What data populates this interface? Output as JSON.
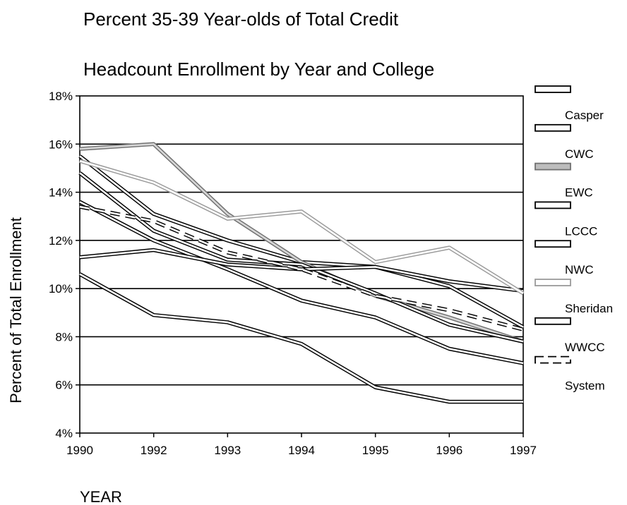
{
  "chart_data": {
    "type": "line",
    "title": [
      "Percent 35-39 Year-olds of Total Credit",
      "Headcount Enrollment by Year and College"
    ],
    "xlabel": "YEAR",
    "ylabel": "Percent of Total Enrollment",
    "categories": [
      "1990",
      "1992",
      "1993",
      "1994",
      "1995",
      "1996",
      "1997"
    ],
    "ylim": [
      4,
      18
    ],
    "yticks": [
      "4%",
      "6%",
      "8%",
      "10%",
      "12%",
      "14%",
      "16%",
      "18%"
    ],
    "grid": true,
    "legend_position": "right",
    "series": [
      {
        "name": "Casper",
        "values": [
          15.5,
          13.1,
          12.0,
          11.1,
          10.9,
          10.1,
          8.4
        ],
        "color": "#000000"
      },
      {
        "name": "CWC",
        "values": [
          13.6,
          12.0,
          10.8,
          9.5,
          8.8,
          7.5,
          6.9
        ],
        "color": "#000000"
      },
      {
        "name": "EWC",
        "values": [
          15.8,
          16.0,
          13.1,
          11.1,
          9.7,
          8.8,
          7.8
        ],
        "color": "#707070"
      },
      {
        "name": "LCCC",
        "values": [
          14.8,
          12.4,
          11.2,
          11.0,
          9.8,
          8.5,
          7.8
        ],
        "color": "#000000"
      },
      {
        "name": "NWC",
        "values": [
          11.3,
          11.6,
          11.0,
          10.8,
          10.9,
          10.3,
          9.9
        ],
        "color": "#000000"
      },
      {
        "name": "Sheridan",
        "values": [
          15.3,
          14.4,
          12.9,
          13.2,
          11.1,
          11.7,
          9.8
        ],
        "color": "#9a9a9a"
      },
      {
        "name": "WWCC",
        "values": [
          10.6,
          8.9,
          8.6,
          7.7,
          5.9,
          5.3,
          5.3
        ],
        "color": "#000000"
      },
      {
        "name": "System",
        "values": [
          13.4,
          12.8,
          11.5,
          10.8,
          9.7,
          9.1,
          8.3
        ],
        "color": "#000000"
      }
    ]
  }
}
